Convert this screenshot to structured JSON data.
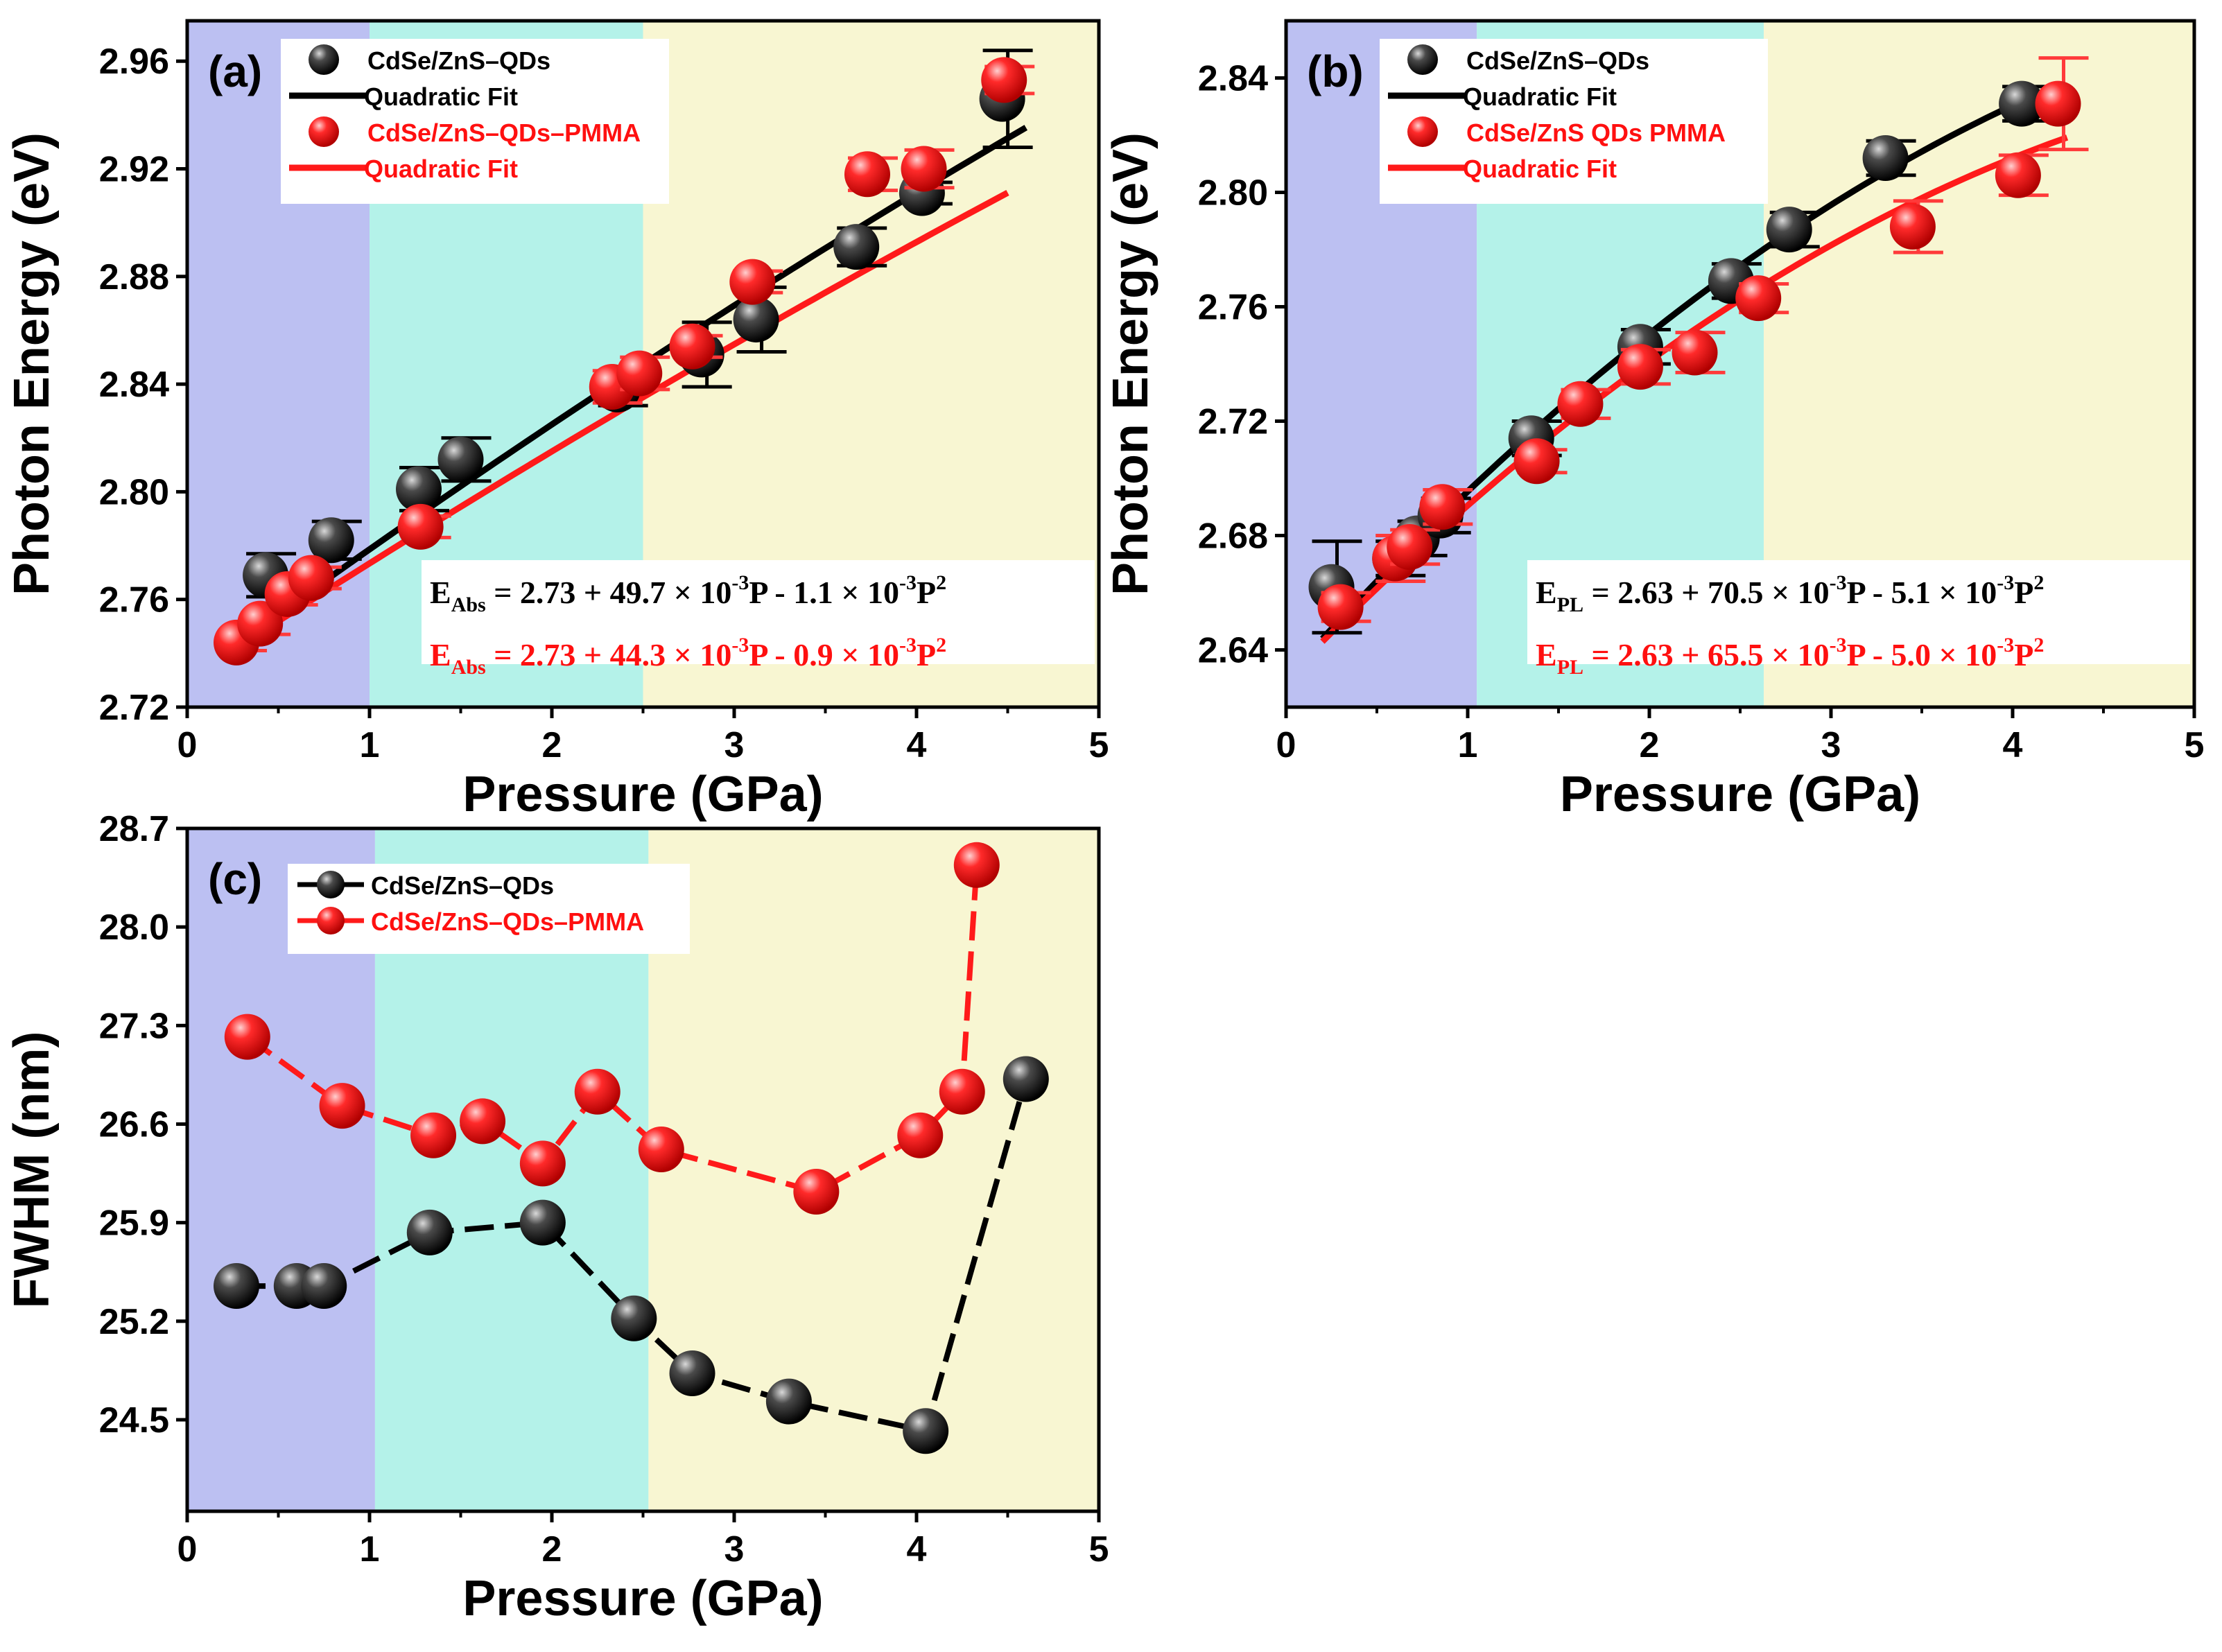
{
  "figure": {
    "marker_colors": {
      "black": "#1a1a1a",
      "red": "#ff1f1f",
      "fit_black": "#000000",
      "fit_red": "#ff1a1a"
    },
    "region_colors": [
      "#bcc0f2",
      "#b4f2e9",
      "#f8f6d2"
    ]
  },
  "chart_data": [
    {
      "id": "a",
      "type": "scatter",
      "panel_label": "(a)",
      "xlabel": "Pressure (GPa)",
      "ylabel": "Photon Energy (eV)",
      "xlim": [
        0,
        5
      ],
      "ylim": [
        2.72,
        2.975
      ],
      "xticks": [
        0,
        1,
        2,
        3,
        4,
        5
      ],
      "xtick_labels": [
        "0",
        "1",
        "2",
        "3",
        "4",
        "5"
      ],
      "yticks": [
        2.72,
        2.76,
        2.8,
        2.84,
        2.88,
        2.92,
        2.96
      ],
      "ytick_labels": [
        "2.72",
        "2.76",
        "2.80",
        "2.84",
        "2.88",
        "2.92",
        "2.96"
      ],
      "regions": [
        {
          "from": 0,
          "to": 1.0
        },
        {
          "from": 1.0,
          "to": 2.5
        },
        {
          "from": 2.5,
          "to": 5
        }
      ],
      "legend": [
        "CdSe/ZnS–QDs",
        "Quadratic Fit",
        "CdSe/ZnS–QDs–PMMA",
        "Quadratic Fit"
      ],
      "equations": [
        {
          "lhs": "E",
          "sub": "Abs",
          "parts": [
            " = 2.73 + 49.7 × 10",
            "-3",
            "P - 1.1 × 10",
            "-3",
            "P",
            "2"
          ]
        },
        {
          "lhs": "E",
          "sub": "Abs",
          "parts": [
            " = 2.73 + 44.3 × 10",
            "-3",
            "P - 0.9 × 10",
            "-3",
            "P",
            "2"
          ]
        }
      ],
      "series": [
        {
          "name": "CdSe/ZnS–QDs",
          "color": "black",
          "x": [
            0.43,
            0.79,
            1.27,
            1.5,
            2.36,
            2.82,
            3.12,
            3.67,
            4.03,
            4.47
          ],
          "y": [
            2.769,
            2.782,
            2.801,
            2.812,
            2.838,
            2.851,
            2.864,
            2.891,
            2.911,
            2.946
          ],
          "err": [
            0.008,
            0.007,
            0.008,
            0.008,
            0.006,
            0.012,
            0.012,
            0.007,
            0.004,
            0.018
          ],
          "fit": {
            "a": 2.73,
            "b": 0.0497,
            "c": -0.0011,
            "x0": 0.3,
            "x1": 4.6
          }
        },
        {
          "name": "CdSe/ZnS–QDs–PMMA",
          "color": "red",
          "x": [
            0.27,
            0.4,
            0.55,
            0.68,
            1.28,
            2.33,
            2.48,
            2.77,
            3.1,
            3.73,
            4.04,
            4.48
          ],
          "y": [
            2.744,
            2.751,
            2.762,
            2.768,
            2.787,
            2.839,
            2.844,
            2.854,
            2.878,
            2.918,
            2.92,
            2.953
          ],
          "err": [
            0.003,
            0.004,
            0.004,
            0.004,
            0.004,
            0.006,
            0.006,
            0.004,
            0.004,
            0.006,
            0.007,
            0.005
          ],
          "fit": {
            "a": 2.73,
            "b": 0.0443,
            "c": -0.0009,
            "x0": 0.25,
            "x1": 4.5
          }
        }
      ]
    },
    {
      "id": "b",
      "type": "scatter",
      "panel_label": "(b)",
      "xlabel": "Pressure (GPa)",
      "ylabel": "Photon Energy (eV)",
      "xlim": [
        0,
        5
      ],
      "ylim": [
        2.62,
        2.86
      ],
      "xticks": [
        0,
        1,
        2,
        3,
        4,
        5
      ],
      "xtick_labels": [
        "0",
        "1",
        "2",
        "3",
        "4",
        "5"
      ],
      "yticks": [
        2.64,
        2.68,
        2.72,
        2.76,
        2.8,
        2.84
      ],
      "ytick_labels": [
        "2.64",
        "2.68",
        "2.72",
        "2.76",
        "2.80",
        "2.84"
      ],
      "regions": [
        {
          "from": 0,
          "to": 1.05
        },
        {
          "from": 1.05,
          "to": 2.63
        },
        {
          "from": 2.63,
          "to": 5
        }
      ],
      "legend": [
        "CdSe/ZnS–QDs",
        "Quadratic Fit",
        "CdSe/ZnS  QDs  PMMA",
        "Quadratic Fit"
      ],
      "equations": [
        {
          "lhs": "E",
          "sub": "PL",
          "parts": [
            " = 2.63 + 70.5 × 10",
            "-3",
            "P - 5.1 × 10",
            "-3",
            "P",
            "2"
          ]
        },
        {
          "lhs": "E",
          "sub": "PL",
          "parts": [
            " = 2.63 + 65.5 × 10",
            "-3",
            "P - 5.0 × 10",
            "-3",
            "P",
            "2"
          ]
        }
      ],
      "series": [
        {
          "name": "CdSe/ZnS–QDs",
          "color": "black",
          "x": [
            0.25,
            0.6,
            0.72,
            0.85,
            1.35,
            1.95,
            2.45,
            2.77,
            3.3,
            4.05
          ],
          "y": [
            2.662,
            2.672,
            2.679,
            2.687,
            2.714,
            2.746,
            2.769,
            2.787,
            2.812,
            2.831
          ],
          "err": [
            0.016,
            0.006,
            0.006,
            0.006,
            0.006,
            0.006,
            0.006,
            0.006,
            0.006,
            0.006
          ],
          "fit": {
            "a": 2.63,
            "b": 0.0705,
            "c": -0.0051,
            "x0": 0.2,
            "x1": 4.1
          }
        },
        {
          "name": "CdSe/ZnS–QDs–PMMA",
          "color": "red",
          "x": [
            0.3,
            0.6,
            0.68,
            0.86,
            1.38,
            1.62,
            1.95,
            2.25,
            2.6,
            3.45,
            4.03,
            4.25
          ],
          "y": [
            2.655,
            2.672,
            2.676,
            2.69,
            2.706,
            2.726,
            2.739,
            2.744,
            2.763,
            2.788,
            2.806,
            2.831
          ],
          "err": [
            0.005,
            0.008,
            0.006,
            0.006,
            0.004,
            0.005,
            0.006,
            0.007,
            0.005,
            0.009,
            0.007,
            0.016
          ],
          "fit": {
            "a": 2.63,
            "b": 0.0655,
            "c": -0.005,
            "x0": 0.2,
            "x1": 4.3
          }
        }
      ]
    },
    {
      "id": "c",
      "type": "line",
      "panel_label": "(c)",
      "xlabel": "Pressure (GPa)",
      "ylabel": "FWHM (nm)",
      "xlim": [
        0,
        5
      ],
      "ylim": [
        23.85,
        28.7
      ],
      "xticks": [
        0,
        1,
        2,
        3,
        4,
        5
      ],
      "xtick_labels": [
        "0",
        "1",
        "2",
        "3",
        "4",
        "5"
      ],
      "yticks": [
        24.5,
        25.2,
        25.9,
        26.6,
        27.3,
        28.0,
        28.7
      ],
      "ytick_labels": [
        "24.5",
        "25.2",
        "25.9",
        "26.6",
        "27.3",
        "28.0",
        "28.7"
      ],
      "regions": [
        {
          "from": 0,
          "to": 1.03
        },
        {
          "from": 1.03,
          "to": 2.53
        },
        {
          "from": 2.53,
          "to": 5
        }
      ],
      "legend": [
        "CdSe/ZnS–QDs",
        "CdSe/ZnS–QDs–PMMA"
      ],
      "series": [
        {
          "name": "CdSe/ZnS–QDs",
          "color": "black",
          "x": [
            0.27,
            0.6,
            0.75,
            1.33,
            1.95,
            2.45,
            2.77,
            3.3,
            4.05,
            4.6
          ],
          "y": [
            25.45,
            25.45,
            25.45,
            25.83,
            25.9,
            25.22,
            24.83,
            24.63,
            24.42,
            26.92
          ]
        },
        {
          "name": "CdSe/ZnS–QDs–PMMA",
          "color": "red",
          "x": [
            0.33,
            0.85,
            1.35,
            1.62,
            1.95,
            2.25,
            2.6,
            3.45,
            4.02,
            4.25,
            4.33
          ],
          "y": [
            27.22,
            26.73,
            26.52,
            26.62,
            26.32,
            26.83,
            26.42,
            26.12,
            26.52,
            26.83,
            28.44
          ]
        }
      ]
    }
  ]
}
